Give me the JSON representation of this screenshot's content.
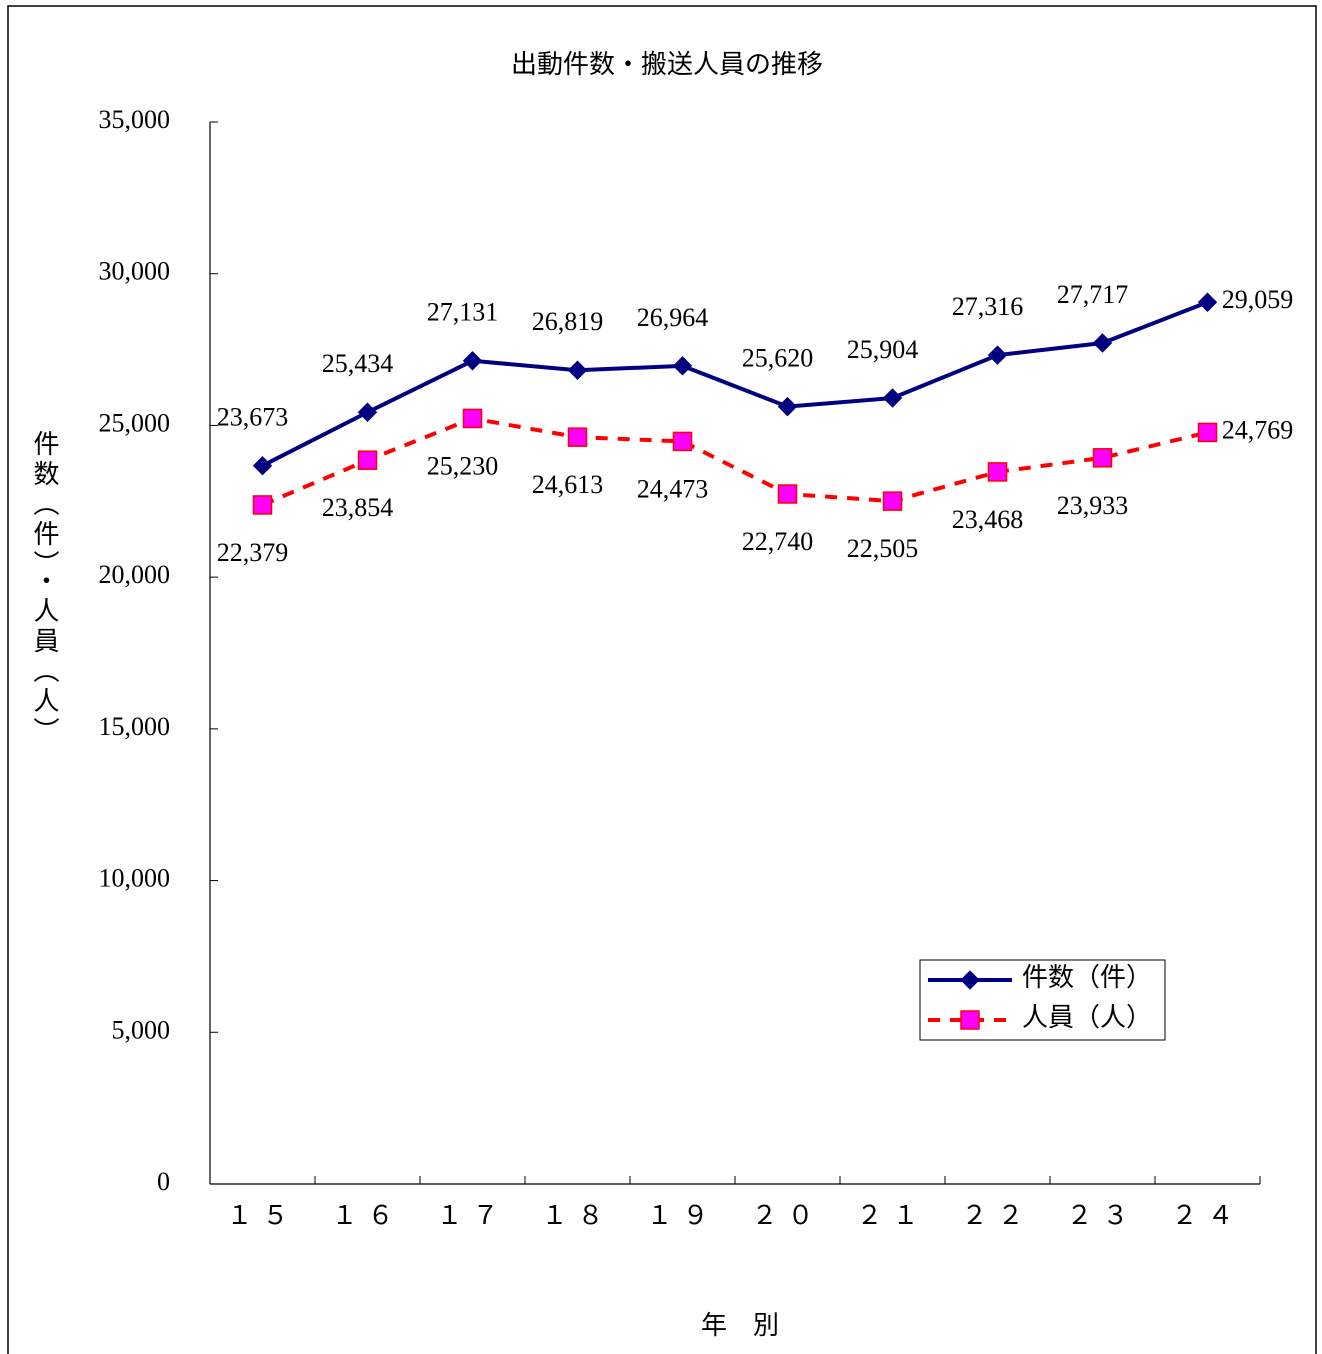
{
  "chart_data": {
    "type": "line",
    "title": "出動件数・搬送人員の推移",
    "x_label": "年　別",
    "y_label": "件数（件）・人員（人）",
    "categories": [
      "１５",
      "１６",
      "１７",
      "１８",
      "１９",
      "２０",
      "２１",
      "２２",
      "２３",
      "２４"
    ],
    "series": [
      {
        "name": "件数（件）",
        "color": "#000080",
        "marker": "diamond",
        "marker_color": "#000080",
        "line_style": "solid",
        "values": [
          23673,
          25434,
          27131,
          26819,
          26964,
          25620,
          25904,
          27316,
          27717,
          29059
        ],
        "value_labels": [
          "23,673",
          "25,434",
          "27,131",
          "26,819",
          "26,964",
          "25,620",
          "25,904",
          "27,316",
          "27,717",
          "29,059"
        ]
      },
      {
        "name": "人員（人）",
        "color": "#ff0000",
        "marker": "square",
        "marker_color": "#ff00ff",
        "line_style": "dashed",
        "values": [
          22379,
          23854,
          25230,
          24613,
          24473,
          22740,
          22505,
          23468,
          23933,
          24769
        ],
        "value_labels": [
          "22,379",
          "23,854",
          "25,230",
          "24,613",
          "24,473",
          "22,740",
          "22,505",
          "23,468",
          "23,933",
          "24,769"
        ]
      }
    ],
    "ylim": [
      0,
      35000
    ],
    "yticks": [
      0,
      {
        "value": 5000,
        "label": "5,000"
      },
      {
        "value": 10000,
        "label": "10,000"
      },
      {
        "value": 15000,
        "label": "15,000"
      },
      {
        "value": 20000,
        "label": "20,000"
      },
      {
        "value": 25000,
        "label": "25,000"
      },
      {
        "value": 30000,
        "label": "30,000"
      },
      {
        "value": 35000,
        "label": "35,000"
      }
    ],
    "grid": false,
    "legend": "lower right"
  }
}
